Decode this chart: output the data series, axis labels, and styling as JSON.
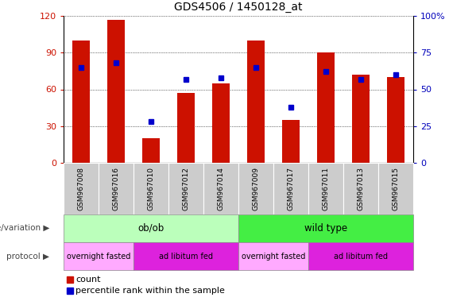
{
  "title": "GDS4506 / 1450128_at",
  "samples": [
    "GSM967008",
    "GSM967016",
    "GSM967010",
    "GSM967012",
    "GSM967014",
    "GSM967009",
    "GSM967017",
    "GSM967011",
    "GSM967013",
    "GSM967015"
  ],
  "counts": [
    100,
    117,
    20,
    57,
    65,
    100,
    35,
    90,
    72,
    70
  ],
  "percentiles": [
    65,
    68,
    28,
    57,
    58,
    65,
    38,
    62,
    57,
    60
  ],
  "ylim_left": [
    0,
    120
  ],
  "ylim_right": [
    0,
    100
  ],
  "yticks_left": [
    0,
    30,
    60,
    90,
    120
  ],
  "yticks_right": [
    0,
    25,
    50,
    75,
    100
  ],
  "yticklabels_right": [
    "0",
    "25",
    "50",
    "75",
    "100%"
  ],
  "bar_color": "#cc1100",
  "square_color": "#0000cc",
  "grid_color": "#000000",
  "bg_color": "#ffffff",
  "plot_bg": "#ffffff",
  "genotype_groups": [
    {
      "label": "ob/ob",
      "start": 0,
      "end": 5,
      "color": "#bbffbb"
    },
    {
      "label": "wild type",
      "start": 5,
      "end": 10,
      "color": "#44ee44"
    }
  ],
  "protocol_groups": [
    {
      "label": "overnight fasted",
      "start": 0,
      "end": 2,
      "color": "#ffaaff"
    },
    {
      "label": "ad libitum fed",
      "start": 2,
      "end": 5,
      "color": "#dd22dd"
    },
    {
      "label": "overnight fasted",
      "start": 5,
      "end": 7,
      "color": "#ffaaff"
    },
    {
      "label": "ad libitum fed",
      "start": 7,
      "end": 10,
      "color": "#dd22dd"
    }
  ],
  "legend_count_color": "#cc1100",
  "legend_pct_color": "#0000cc",
  "bar_width": 0.5,
  "sample_cell_color": "#cccccc"
}
